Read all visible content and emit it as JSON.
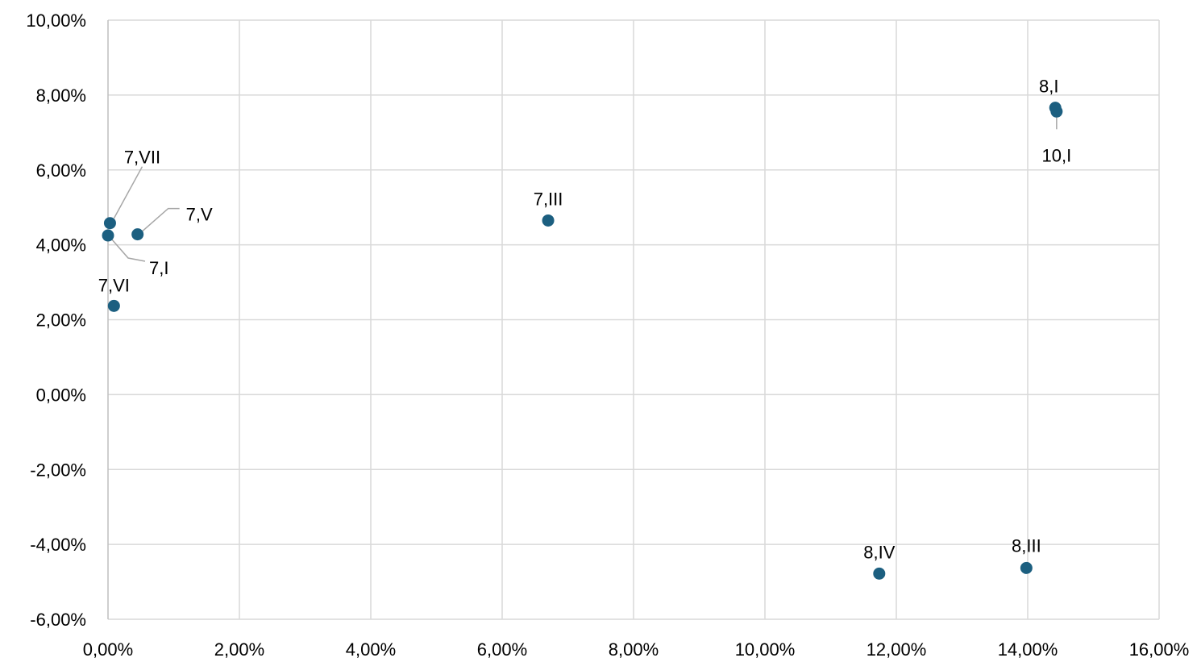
{
  "chart_data": {
    "type": "scatter",
    "title": "",
    "xlabel": "",
    "ylabel": "",
    "xlim": [
      0,
      16
    ],
    "ylim": [
      -6,
      10
    ],
    "x_ticks": [
      0,
      2,
      4,
      6,
      8,
      10,
      12,
      14,
      16
    ],
    "y_ticks": [
      -6,
      -4,
      -2,
      0,
      2,
      4,
      6,
      8,
      10
    ],
    "x_tick_labels": [
      "0,00%",
      "2,00%",
      "4,00%",
      "6,00%",
      "8,00%",
      "10,00%",
      "12,00%",
      "14,00%",
      "16,00%"
    ],
    "y_tick_labels": [
      "-6,00%",
      "-4,00%",
      "-2,00%",
      "0,00%",
      "2,00%",
      "4,00%",
      "6,00%",
      "8,00%",
      "10,00%"
    ],
    "grid": true,
    "legend": "none",
    "colors": {
      "marker": "#1c5f80",
      "grid": "#d9d9d9",
      "leader": "#a6a6a6"
    },
    "points": [
      {
        "label": "8,I",
        "x": 14.42,
        "y": 7.66
      },
      {
        "label": "10,I",
        "x": 14.44,
        "y": 7.56
      },
      {
        "label": "7,VII",
        "x": 0.03,
        "y": 4.58
      },
      {
        "label": "7,V",
        "x": 0.45,
        "y": 4.28
      },
      {
        "label": "7,I",
        "x": 0.0,
        "y": 4.25
      },
      {
        "label": "7,VI",
        "x": 0.09,
        "y": 2.37
      },
      {
        "label": "7,III",
        "x": 6.7,
        "y": 4.65
      },
      {
        "label": "8,IV",
        "x": 11.74,
        "y": -4.78
      },
      {
        "label": "8,III",
        "x": 13.98,
        "y": -4.63
      }
    ]
  }
}
